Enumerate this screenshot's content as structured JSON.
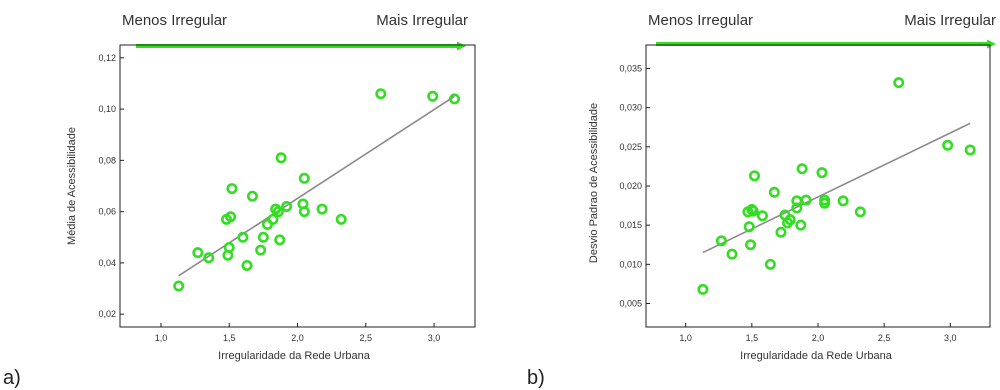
{
  "colors": {
    "marker": "#33dd22",
    "arrow": "#33dd22",
    "fit_line": "#8a8a8a",
    "axis": "#222222",
    "text": "#333333"
  },
  "chart_data": [
    {
      "panel_label": "a)",
      "type": "scatter",
      "arrow_left_label": "Menos Irregular",
      "arrow_right_label": "Mais Irregular",
      "xlabel": "Irregularidade da Rede Urbana",
      "ylabel": "Média de Acessibilidade",
      "xlim": [
        0.7,
        3.3
      ],
      "ylim": [
        0.015,
        0.125
      ],
      "xticks": [
        "1,0",
        "1,5",
        "2,0",
        "2,5",
        "3,0"
      ],
      "xtick_values": [
        1.0,
        1.5,
        2.0,
        2.5,
        3.0
      ],
      "yticks": [
        "0,02",
        "0,04",
        "0,06",
        "0,08",
        "0,10",
        "0,12"
      ],
      "ytick_values": [
        0.02,
        0.04,
        0.06,
        0.08,
        0.1,
        0.12
      ],
      "fit_line": {
        "x": [
          1.13,
          3.15
        ],
        "y": [
          0.035,
          0.105
        ]
      },
      "x": [
        1.13,
        1.27,
        1.35,
        1.48,
        1.49,
        1.5,
        1.51,
        1.52,
        1.6,
        1.63,
        1.67,
        1.73,
        1.75,
        1.78,
        1.82,
        1.84,
        1.86,
        1.87,
        1.88,
        1.92,
        2.04,
        2.05,
        2.05,
        2.18,
        2.32,
        2.61,
        2.99,
        3.15
      ],
      "y": [
        0.031,
        0.044,
        0.042,
        0.057,
        0.043,
        0.046,
        0.058,
        0.069,
        0.05,
        0.039,
        0.066,
        0.045,
        0.05,
        0.055,
        0.057,
        0.061,
        0.06,
        0.049,
        0.081,
        0.062,
        0.063,
        0.06,
        0.073,
        0.061,
        0.057,
        0.106,
        0.105,
        0.104
      ]
    },
    {
      "panel_label": "b)",
      "type": "scatter",
      "arrow_left_label": "Menos Irregular",
      "arrow_right_label": "Mais Irregular",
      "xlabel": "Irregularidade da Rede Urbana",
      "ylabel": "Desvio Padrao de Acessibilidade",
      "xlim": [
        0.7,
        3.3
      ],
      "ylim": [
        0.002,
        0.038
      ],
      "xticks": [
        "1,0",
        "1,5",
        "2,0",
        "2,5",
        "3,0"
      ],
      "xtick_values": [
        1.0,
        1.5,
        2.0,
        2.5,
        3.0
      ],
      "yticks": [
        "0,005",
        "0,010",
        "0,015",
        "0,020",
        "0,025",
        "0,030",
        "0,035"
      ],
      "ytick_values": [
        0.005,
        0.01,
        0.015,
        0.02,
        0.025,
        0.03,
        0.035
      ],
      "fit_line": {
        "x": [
          1.13,
          3.15
        ],
        "y": [
          0.0115,
          0.028
        ]
      },
      "x": [
        1.13,
        1.27,
        1.35,
        1.47,
        1.48,
        1.49,
        1.5,
        1.51,
        1.52,
        1.58,
        1.64,
        1.67,
        1.72,
        1.75,
        1.77,
        1.79,
        1.84,
        1.84,
        1.87,
        1.88,
        1.91,
        2.03,
        2.05,
        2.05,
        2.19,
        2.32,
        2.61,
        2.98,
        3.15
      ],
      "y": [
        0.0068,
        0.013,
        0.0113,
        0.0167,
        0.0148,
        0.0125,
        0.017,
        0.0168,
        0.0213,
        0.0162,
        0.01,
        0.0192,
        0.0141,
        0.0163,
        0.0153,
        0.0157,
        0.0181,
        0.0172,
        0.015,
        0.0222,
        0.0182,
        0.0217,
        0.0178,
        0.0182,
        0.0181,
        0.0167,
        0.0332,
        0.0252,
        0.0246
      ]
    }
  ]
}
